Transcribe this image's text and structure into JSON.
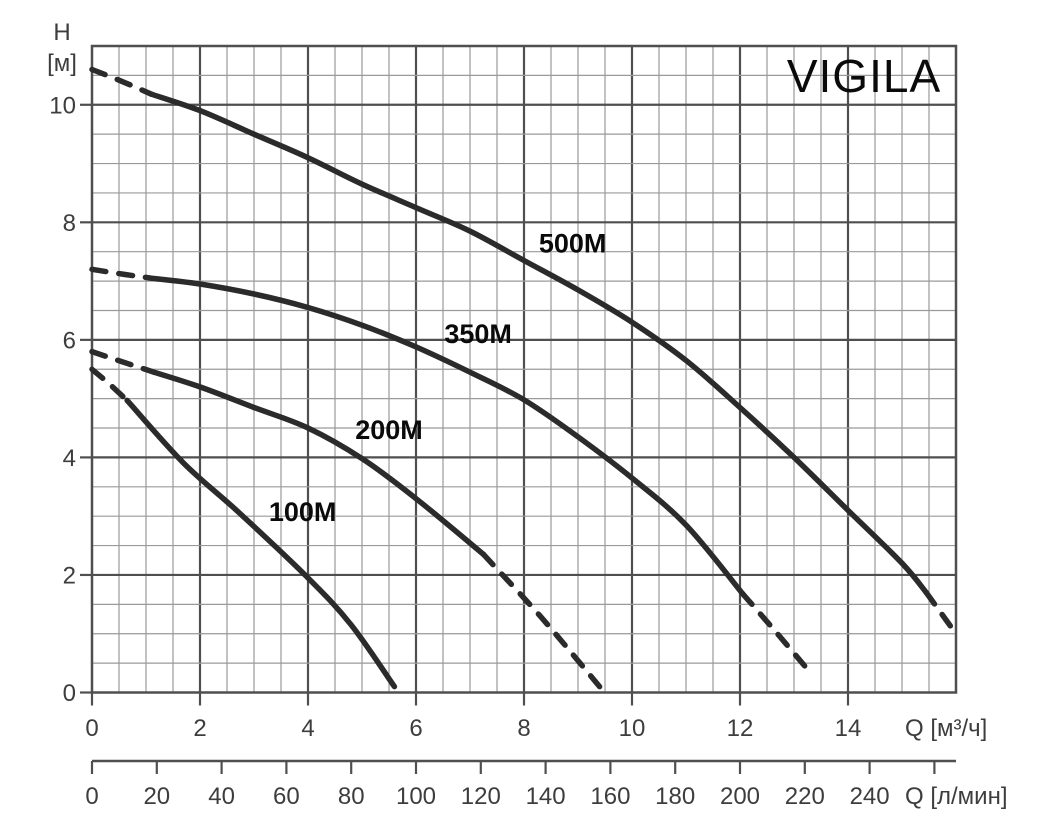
{
  "title": "VIGILA",
  "colors": {
    "curve": "#2b2b2b",
    "grid_minor": "#9a9a9a",
    "grid_major": "#4f4f4f",
    "tick_text": "#3d3d3d",
    "label_text": "#0a0a0a",
    "background": "#ffffff"
  },
  "y_axis": {
    "name": "H",
    "unit": "[м]",
    "ticks": [
      10,
      8,
      6,
      4,
      2,
      0
    ],
    "range": [
      0,
      11
    ],
    "major_step": 2,
    "minor_step": 0.5
  },
  "x_axis_primary": {
    "unit_label": "Q [м³/ч]",
    "ticks": [
      0,
      2,
      4,
      6,
      8,
      10,
      12,
      14
    ],
    "range": [
      0,
      16
    ],
    "major_step": 2,
    "minor_step": 0.5
  },
  "x_axis_secondary": {
    "unit_label": "Q [л/мин]",
    "ticks": [
      0,
      20,
      40,
      60,
      80,
      100,
      120,
      140,
      160,
      180,
      200,
      220,
      240
    ],
    "extra_unlabeled_ticks": [
      260
    ],
    "litres_per_min_per_m3h": 16.667
  },
  "chart_data": {
    "type": "line",
    "title": "VIGILA",
    "xlabel_primary": "Q [м³/ч]",
    "xlabel_secondary": "Q [л/мин]",
    "ylabel": "H [м]",
    "xlim": [
      0,
      16
    ],
    "ylim": [
      0,
      11
    ],
    "grid": "on",
    "series": [
      {
        "name": "500M",
        "label": "500M",
        "label_at": {
          "q": 8.9,
          "h": 7.66
        },
        "dash_start": [
          [
            0,
            10.6
          ],
          [
            0.55,
            10.4
          ],
          [
            1.1,
            10.18
          ]
        ],
        "solid": [
          [
            1.1,
            10.18
          ],
          [
            2,
            9.9
          ],
          [
            3,
            9.5
          ],
          [
            4,
            9.1
          ],
          [
            5,
            8.65
          ],
          [
            6,
            8.25
          ],
          [
            7,
            7.85
          ],
          [
            8,
            7.35
          ],
          [
            9,
            6.85
          ],
          [
            10,
            6.3
          ],
          [
            11,
            5.65
          ],
          [
            12,
            4.85
          ],
          [
            13,
            4.0
          ],
          [
            14,
            3.1
          ],
          [
            15,
            2.2
          ],
          [
            15.45,
            1.7
          ]
        ],
        "dash_end": [
          [
            15.45,
            1.7
          ],
          [
            16,
            1.0
          ]
        ]
      },
      {
        "name": "350M",
        "label": "350M",
        "label_at": {
          "q": 7.15,
          "h": 6.12
        },
        "dash_start": [
          [
            0,
            7.2
          ],
          [
            0.55,
            7.12
          ],
          [
            1.1,
            7.05
          ]
        ],
        "solid": [
          [
            1.1,
            7.05
          ],
          [
            2,
            6.95
          ],
          [
            3,
            6.78
          ],
          [
            4,
            6.55
          ],
          [
            5,
            6.25
          ],
          [
            6,
            5.88
          ],
          [
            7,
            5.45
          ],
          [
            8,
            4.98
          ],
          [
            9,
            4.35
          ],
          [
            10,
            3.65
          ],
          [
            11,
            2.85
          ],
          [
            12.05,
            1.68
          ]
        ],
        "dash_end": [
          [
            12.05,
            1.68
          ],
          [
            12.6,
            1.1
          ],
          [
            13.2,
            0.45
          ]
        ]
      },
      {
        "name": "200M",
        "label": "200M",
        "label_at": {
          "q": 5.5,
          "h": 4.48
        },
        "dash_start": [
          [
            0,
            5.8
          ],
          [
            0.55,
            5.63
          ],
          [
            1.15,
            5.45
          ]
        ],
        "solid": [
          [
            1.15,
            5.45
          ],
          [
            2,
            5.2
          ],
          [
            3,
            4.85
          ],
          [
            4,
            4.5
          ],
          [
            5,
            3.98
          ],
          [
            6,
            3.3
          ],
          [
            7.25,
            2.35
          ]
        ],
        "dash_end": [
          [
            7.25,
            2.35
          ],
          [
            8.3,
            1.3
          ],
          [
            9.4,
            0.1
          ]
        ]
      },
      {
        "name": "100M",
        "label": "100M",
        "label_at": {
          "q": 3.9,
          "h": 3.09
        },
        "dash_start": [
          [
            0,
            5.5
          ],
          [
            0.32,
            5.25
          ],
          [
            0.65,
            4.97
          ]
        ],
        "solid": [
          [
            0.65,
            4.97
          ],
          [
            1.7,
            3.9
          ],
          [
            2.7,
            3.08
          ],
          [
            4,
            1.95
          ],
          [
            4.8,
            1.15
          ],
          [
            5.6,
            0.1
          ]
        ],
        "dash_end": []
      }
    ]
  }
}
